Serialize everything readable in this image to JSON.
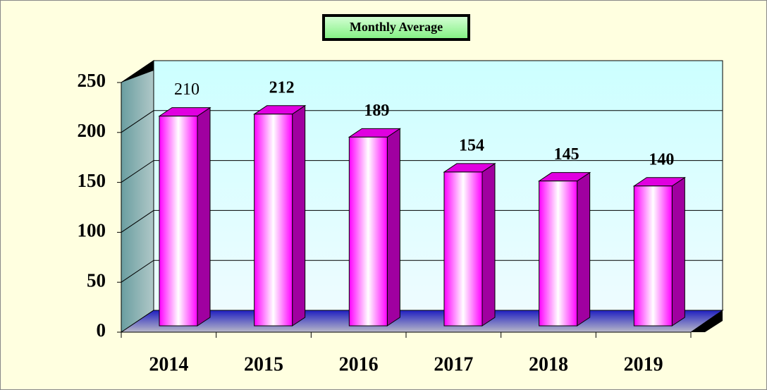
{
  "chart_data": {
    "type": "bar3d",
    "title": "Monthly Average",
    "categories": [
      "2014",
      "2015",
      "2016",
      "2017",
      "2018",
      "2019"
    ],
    "values": [
      210,
      212,
      189,
      154,
      145,
      140
    ],
    "color": "#ff00ff",
    "ylim": [
      0,
      250
    ],
    "yticks": [
      0,
      50,
      100,
      150,
      200,
      250
    ],
    "grid": true
  }
}
